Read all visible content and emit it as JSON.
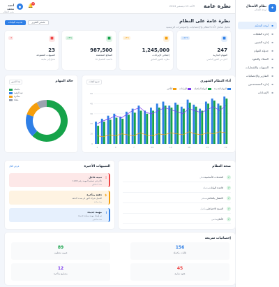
{
  "app": {
    "name": "نظام الأشغال",
    "subtitle": "لوحة التحكم"
  },
  "sidebar": {
    "items": [
      {
        "label": "لوحة التحكم",
        "icon": "dashboard-icon"
      },
      {
        "label": "إدارة الطلبات",
        "icon": "orders-icon"
      },
      {
        "label": "إدارة الفنيين",
        "icon": "technicians-icon"
      },
      {
        "label": "جدولة المهام",
        "icon": "calendar-icon"
      },
      {
        "label": "العملاء والعقود",
        "icon": "clients-icon"
      },
      {
        "label": "التنبيهات والإشعارات",
        "icon": "bell-icon"
      },
      {
        "label": "التقارير والإحصائيات",
        "icon": "reports-icon"
      },
      {
        "label": "إدارة المستخدمين",
        "icon": "users-icon"
      },
      {
        "label": "الإعدادات",
        "icon": "settings-icon"
      }
    ]
  },
  "header": {
    "title": "نظرة عامة",
    "datetime": "الأحد 15 ديسمبر 2024",
    "user_name": "أحمد محمد",
    "user_role": "مدير النظام",
    "notification_count": "3"
  },
  "dashboard": {
    "title": "نظرة عامة على النظام",
    "subtitle": "تحليل شامل لأداء النظام والإحصائيات والمؤشرات الرئيسية",
    "btn_export": "تصدير التقرير",
    "btn_refresh": "تحديث البيانات"
  },
  "stats": [
    {
      "value": "247",
      "label": "المهام الجارية",
      "note": "أعلى من الشهر الماضي",
      "badge": "+12%",
      "color": "#2f7fe6",
      "icon": "tasks-icon"
    },
    {
      "value": "1,245,000",
      "label": "إجمالي الإيرادات",
      "note": "مقارنة بالشهر السابق",
      "badge": "+8%",
      "color": "#f59e0b",
      "icon": "money-icon"
    },
    {
      "value": "987,500",
      "label": "المبالغ المحصلة",
      "note": "نسبة التحصيل 79%",
      "badge": "+5%",
      "color": "#16a34a",
      "icon": "check-icon"
    },
    {
      "value": "23",
      "label": "التنبيهات المفتوحة",
      "note": "تحتاج إلى متابعة",
      "badge": "-3",
      "color": "#ef4444",
      "icon": "alert-icon"
    }
  ],
  "monthly_chart": {
    "title": "أداء النظام الشهري",
    "select_label": "جميع الفئات"
  },
  "donut_card": {
    "title": "حالة المهام",
    "select_label": "هذا الشهر"
  },
  "system_status": {
    "title": "صحة النظام",
    "rows": [
      {
        "label": "الخدمات الأساسية",
        "value": "تعمل"
      },
      {
        "label": "قاعدة البيانات",
        "value": "متصلة"
      },
      {
        "label": "الاتصال بالخادم",
        "value": "مستقر"
      },
      {
        "label": "النسخ الاحتياطي",
        "value": "مكتمل"
      },
      {
        "label": "الأمان",
        "value": "محمي"
      }
    ]
  },
  "notifications": {
    "title": "التنبيهات الأخيرة",
    "view_all": "عرض الكل",
    "items": [
      {
        "title": "تنبيه عاجل",
        "body": "تأخر في تسليم المهمة رقم 1245",
        "time": "منذ 5 دقائق",
        "bg": "#fde8e8",
        "color": "#ef4444",
        "icon": "!"
      },
      {
        "title": "دفعة متأخرة",
        "body": "العميل شركة النور لم يسدد الدفعة",
        "time": "منذ ساعة",
        "bg": "#fef3e2",
        "color": "#f59e0b",
        "icon": "$"
      },
      {
        "title": "مهمة جديدة",
        "body": "تم إسناد مهمة صيانة جديدة",
        "time": "منذ ساعتين",
        "bg": "#e6f0fd",
        "color": "#2f7fe6",
        "icon": "i"
      }
    ]
  },
  "quick_stats": {
    "title": "إحصائيات سريعة",
    "items": [
      {
        "value": "156",
        "label": "طلبات مكتملة",
        "color": "#2f7fe6"
      },
      {
        "value": "89",
        "label": "فنيون نشطون",
        "color": "#16a34a"
      },
      {
        "value": "45",
        "label": "عقود سارية",
        "color": "#ef4444"
      },
      {
        "value": "12",
        "label": "مشاريع متأخرة",
        "color": "#7c3aed"
      }
    ]
  },
  "chart_data": [
    {
      "type": "bar",
      "title": "أداء النظام الشهري",
      "categories": [
        "1",
        "2",
        "3",
        "4",
        "5",
        "6",
        "7",
        "8",
        "9",
        "10",
        "11",
        "12",
        "13",
        "14",
        "15",
        "16",
        "17",
        "18",
        "19",
        "20",
        "21",
        "22"
      ],
      "series": [
        {
          "name": "المهام الجديدة",
          "color": "#2f7fe6",
          "values": [
            22,
            25,
            28,
            30,
            27,
            32,
            35,
            38,
            33,
            36,
            40,
            42,
            38,
            41,
            37,
            44,
            39,
            35,
            42,
            45,
            40,
            47
          ]
        },
        {
          "name": "المهام المكتملة",
          "color": "#16a34a",
          "values": [
            18,
            22,
            24,
            26,
            25,
            29,
            31,
            33,
            30,
            33,
            36,
            38,
            36,
            39,
            35,
            41,
            37,
            33,
            40,
            43,
            38,
            45
          ]
        },
        {
          "name": "الإيرادات",
          "color": "#7c3aed",
          "type": "line",
          "values": [
            20,
            23,
            25,
            28,
            26,
            30,
            34,
            36,
            31,
            30,
            33,
            36,
            34,
            32,
            30,
            35,
            33,
            31,
            34,
            37,
            33,
            38
          ]
        },
        {
          "name": "التأخير",
          "color": "#f59e0b",
          "type": "line",
          "values": [
            8,
            7,
            9,
            8,
            10,
            9,
            8,
            11,
            9,
            8,
            10,
            9,
            11,
            10,
            9,
            12,
            10,
            9,
            11,
            10,
            12,
            11
          ]
        }
      ],
      "ylim": [
        0,
        50
      ]
    },
    {
      "type": "pie",
      "title": "حالة المهام",
      "labels": [
        "مكتملة",
        "قيد التنفيذ",
        "متأخرة",
        "ملغاة"
      ],
      "values": [
        62,
        18,
        12,
        8
      ],
      "colors": [
        "#16a34a",
        "#2f7fe6",
        "#f59e0b",
        "#9ca3af"
      ]
    }
  ]
}
